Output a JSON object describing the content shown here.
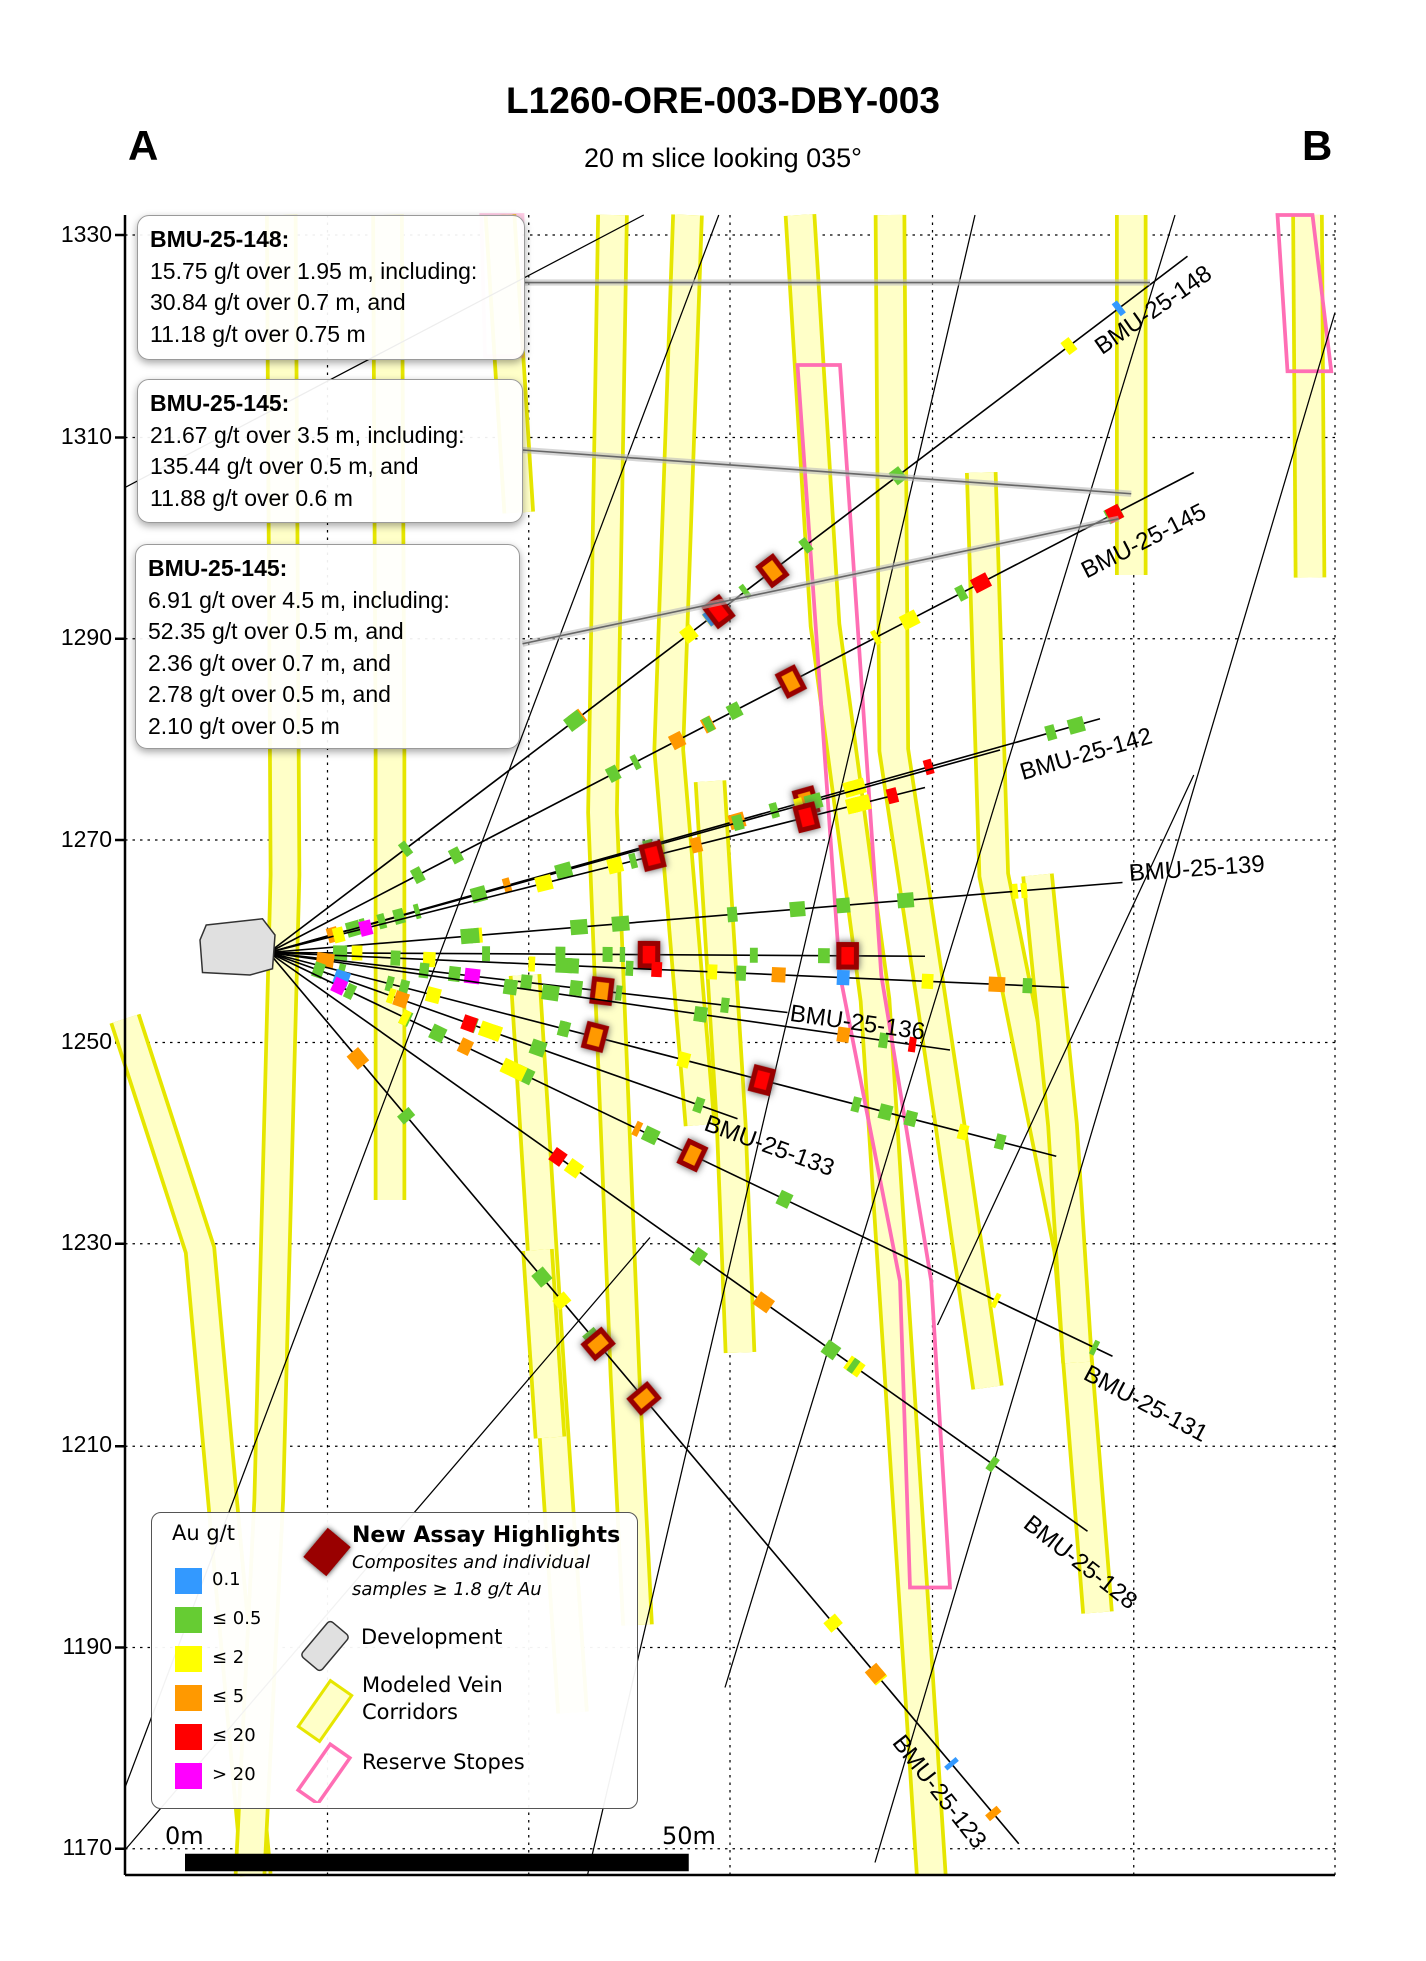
{
  "title": "L1260-ORE-003-DBY-003",
  "subtitle": "20 m slice looking 035°",
  "section_ends": {
    "left": "A",
    "right": "B"
  },
  "y_axis": {
    "ticks": [
      "1330",
      "1310",
      "1290",
      "1270",
      "1250",
      "1230",
      "1210",
      "1190",
      "1170"
    ],
    "grid": true
  },
  "drillholes": [
    "BMU-25-148",
    "BMU-25-145",
    "BMU-25-142",
    "BMU-25-139",
    "BMU-25-136",
    "BMU-25-133",
    "BMU-25-131",
    "BMU-25-128",
    "BMU-25-123"
  ],
  "callouts": [
    {
      "hole": "BMU-25-148:",
      "lines": [
        "15.75 g/t over 1.95 m, including:",
        "30.84 g/t over 0.7 m, and",
        "11.18 g/t over 0.75 m"
      ]
    },
    {
      "hole": "BMU-25-145:",
      "lines": [
        "21.67 g/t over 3.5 m, including:",
        "135.44 g/t over 0.5 m, and",
        "11.88 g/t over 0.6 m"
      ]
    },
    {
      "hole": "BMU-25-145:",
      "lines": [
        "6.91 g/t over 4.5 m, including:",
        "52.35 g/t over 0.5 m, and",
        "2.36 g/t over 0.7 m, and",
        "2.78 g/t over 0.5 m, and",
        "2.10 g/t over 0.5 m"
      ]
    }
  ],
  "legend": {
    "grade_title": "Au g/t",
    "grades": [
      {
        "label": "0.1",
        "color": "#3399ff"
      },
      {
        "label": "≤ 0.5",
        "color": "#66cc33"
      },
      {
        "label": "≤ 2",
        "color": "#ffff00"
      },
      {
        "label": "≤ 5",
        "color": "#ff9900"
      },
      {
        "label": "≤ 20",
        "color": "#ff0000"
      },
      {
        "label": "> 20",
        "color": "#ff00ff"
      }
    ],
    "highlights_title": "New Assay Highlights",
    "highlights_desc1": "Composites and individual",
    "highlights_desc2": "samples ≥ 1.8 g/t Au",
    "development": "Development",
    "vein1": "Modeled Vein",
    "vein2": "Corridors",
    "stopes": "Reserve Stopes"
  },
  "scale_bar": {
    "start": "0m",
    "end": "50m"
  },
  "colors": {
    "highlight": "#990000",
    "vein_fill": "#ffffc8",
    "vein_stroke": "#e6e600",
    "stope": "#ff6eb4",
    "development": "#e0e0e0"
  }
}
